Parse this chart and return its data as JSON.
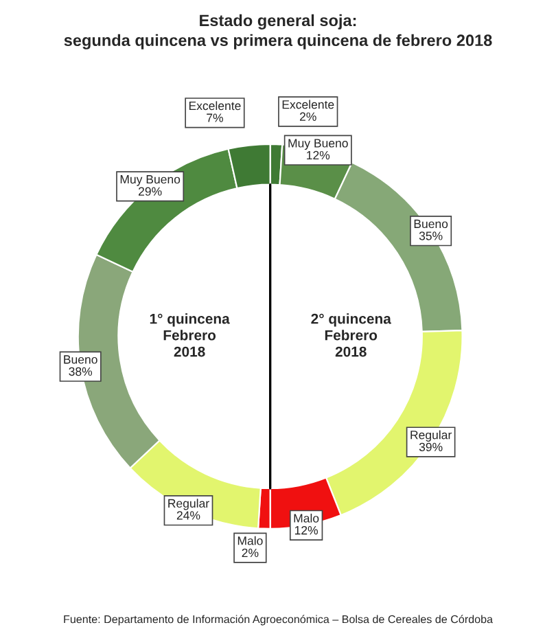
{
  "chart_data": {
    "type": "donut",
    "title": "Estado general soja:\nsegunda quincena vs primera quincena de febrero 2018",
    "categories": [
      "Excelente",
      "Muy Bueno",
      "Bueno",
      "Regular",
      "Malo",
      "Malo",
      "Regular",
      "Bueno",
      "Muy Bueno",
      "Excelente"
    ],
    "values": [
      2,
      12,
      35,
      39,
      12,
      2,
      24,
      38,
      29,
      7
    ],
    "value_labels": [
      "2%",
      "12%",
      "35%",
      "39%",
      "12%",
      "2%",
      "24%",
      "38%",
      "29%",
      "7%"
    ],
    "colors": [
      "#3f7a34",
      "#5a8f48",
      "#86a877",
      "#e2f56e",
      "#f01010",
      "#f01010",
      "#e2f56e",
      "#8aa77a",
      "#4f8a40",
      "#3f7a34"
    ],
    "annotations": [
      "1° quincena\nFebrero\n2018",
      "2° quincena\nFebrero\n2018",
      "Fuente: Departamento de Información Agroeconómica – Bolsa de Cereales de Córdoba"
    ]
  }
}
